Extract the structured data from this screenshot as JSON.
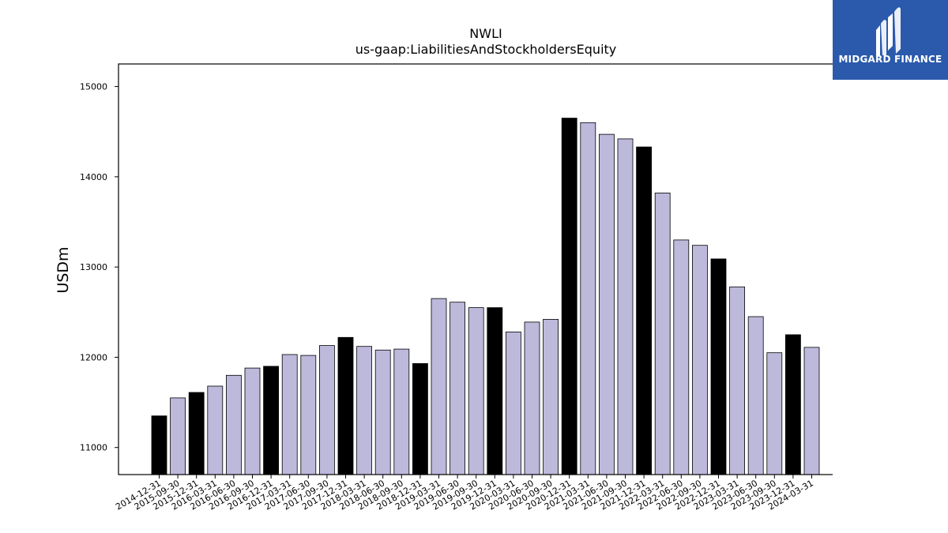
{
  "chart_data": {
    "type": "bar",
    "title": "NWLI",
    "subtitle": "us-gaap:LiabilitiesAndStockholdersEquity",
    "ylabel": "USDm",
    "xlabel": "",
    "ylim": [
      10700,
      15250
    ],
    "yticks": [
      11000,
      12000,
      13000,
      14000,
      15000
    ],
    "grid": false,
    "categories": [
      "2014-12-31",
      "2015-09-30",
      "2015-12-31",
      "2016-03-31",
      "2016-06-30",
      "2016-09-30",
      "2016-12-31",
      "2017-03-31",
      "2017-06-30",
      "2017-09-30",
      "2017-12-31",
      "2018-03-31",
      "2018-06-30",
      "2018-09-30",
      "2018-12-31",
      "2019-03-31",
      "2019-06-30",
      "2019-09-30",
      "2019-12-31",
      "2020-03-31",
      "2020-06-30",
      "2020-09-30",
      "2020-12-31",
      "2021-03-31",
      "2021-06-30",
      "2021-09-30",
      "2021-12-31",
      "2022-03-31",
      "2022-06-30",
      "2022-09-30",
      "2022-12-31",
      "2023-03-31",
      "2023-06-30",
      "2023-09-30",
      "2023-12-31",
      "2024-03-31"
    ],
    "values": [
      11350,
      11550,
      11610,
      11680,
      11800,
      11880,
      11900,
      12030,
      12020,
      12130,
      12220,
      12120,
      12080,
      12090,
      11930,
      12650,
      12610,
      12550,
      12550,
      12280,
      12390,
      12420,
      14650,
      14600,
      14470,
      14420,
      14330,
      13820,
      13300,
      13240,
      13090,
      12780,
      12450,
      12050,
      12250,
      12110
    ],
    "annual_flags": [
      true,
      false,
      true,
      false,
      false,
      false,
      true,
      false,
      false,
      false,
      true,
      false,
      false,
      false,
      true,
      false,
      false,
      false,
      true,
      false,
      false,
      false,
      true,
      false,
      false,
      false,
      true,
      false,
      false,
      false,
      true,
      false,
      false,
      false,
      true,
      false
    ],
    "colors": {
      "annual": "#000000",
      "quarterly": "#bcb9db",
      "edge": "#000000"
    }
  },
  "logo": {
    "text": "MIDGARD FINANCE",
    "bg": "#2b5aad"
  }
}
